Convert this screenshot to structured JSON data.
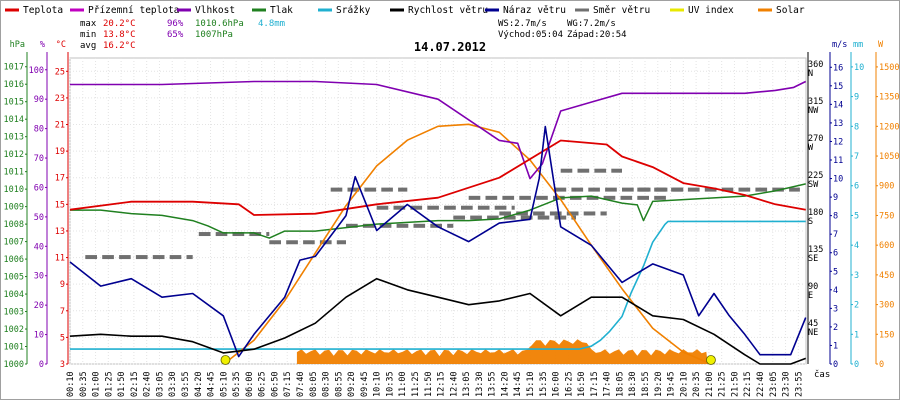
{
  "chart_data": {
    "type": "line",
    "title": "14.07.2012",
    "legend": [
      {
        "name": "Teplota",
        "color": "#dd0000"
      },
      {
        "name": "Přízemní teplota",
        "color": "#c000c0"
      },
      {
        "name": "Vlhkost",
        "color": "#8000b0"
      },
      {
        "name": "Tlak",
        "color": "#208020"
      },
      {
        "name": "Srážky",
        "color": "#20b0d0"
      },
      {
        "name": "Rychlost větru",
        "color": "#000000"
      },
      {
        "name": "Náraz větru",
        "color": "#000090"
      },
      {
        "name": "Směr větru",
        "color": "#707070"
      },
      {
        "name": "UV index",
        "color": "#e8e800"
      },
      {
        "name": "Solar",
        "color": "#f08000"
      }
    ],
    "stats": [
      {
        "label": "max",
        "temp": "20.2°C",
        "hum": "96%",
        "press": "1010.6hPa",
        "rain": "4.8mm"
      },
      {
        "label": "min",
        "temp": "13.8°C",
        "hum": "65%",
        "press": "1007hPa",
        "rain": ""
      },
      {
        "label": "avg",
        "temp": "16.2°C",
        "hum": "",
        "press": "",
        "rain": ""
      }
    ],
    "wind_info": {
      "ws": "WS:2.7m/s",
      "wg": "WG:7.2m/s",
      "sunrise": "Východ:05:04",
      "sunset": "Západ:20:54"
    },
    "axes": {
      "left_units": [
        "hPa",
        "%",
        "°C"
      ],
      "right_units": [
        "m/s",
        "mm",
        "W"
      ],
      "x_title": "čas",
      "pressure_ticks": [
        1000,
        1001,
        1002,
        1003,
        1004,
        1005,
        1006,
        1007,
        1008,
        1009,
        1010,
        1011,
        1012,
        1013,
        1014,
        1015,
        1016,
        1017
      ],
      "humidity_ticks": [
        0,
        10,
        20,
        30,
        40,
        50,
        60,
        70,
        80,
        90,
        100
      ],
      "temp_ticks": [
        3,
        5,
        7,
        9,
        11,
        13,
        15,
        17,
        19,
        21,
        23,
        25
      ],
      "direction_ticks": [
        {
          "deg": "45",
          "dir": "NE"
        },
        {
          "deg": "90",
          "dir": "E"
        },
        {
          "deg": "135",
          "dir": "SE"
        },
        {
          "deg": "180",
          "dir": "S"
        },
        {
          "deg": "225",
          "dir": "SW"
        },
        {
          "deg": "270",
          "dir": "W"
        },
        {
          "deg": "315",
          "dir": "NW"
        },
        {
          "deg": "360",
          "dir": "N"
        }
      ],
      "speed_ticks": [
        0,
        1,
        2,
        3,
        4,
        5,
        6,
        7,
        8,
        9,
        10,
        11,
        12,
        13,
        14,
        15,
        16
      ],
      "rain_ticks": [
        0,
        1,
        2,
        3,
        4,
        5,
        6,
        7,
        8,
        9,
        10
      ],
      "solar_ticks": [
        0,
        150,
        300,
        450,
        600,
        750,
        900,
        1050,
        1200,
        1350,
        1500
      ],
      "time_labels": [
        "00:10",
        "00:35",
        "01:00",
        "01:25",
        "01:50",
        "02:15",
        "02:40",
        "03:05",
        "03:30",
        "03:55",
        "04:20",
        "04:45",
        "05:10",
        "05:35",
        "06:00",
        "06:25",
        "06:50",
        "07:15",
        "07:40",
        "08:05",
        "08:30",
        "08:55",
        "09:20",
        "09:45",
        "10:10",
        "10:35",
        "11:00",
        "11:25",
        "11:50",
        "12:15",
        "12:40",
        "13:05",
        "13:30",
        "13:55",
        "14:20",
        "14:45",
        "15:10",
        "15:35",
        "16:00",
        "16:25",
        "16:50",
        "17:15",
        "17:40",
        "18:05",
        "18:30",
        "18:55",
        "19:20",
        "19:45",
        "20:10",
        "20:35",
        "21:00",
        "21:25",
        "21:50",
        "22:15",
        "22:40",
        "23:05",
        "23:30",
        "23:55"
      ]
    },
    "ranges": {
      "temp": [
        3,
        26
      ],
      "hum": [
        0,
        104
      ],
      "press": [
        1000,
        1017.5
      ],
      "speed": [
        0,
        16.5
      ],
      "rain": [
        0,
        10.3
      ],
      "solar": [
        0,
        1545
      ],
      "dir": [
        0,
        372
      ]
    },
    "series": [
      {
        "name": "Teplota",
        "color": "#dd0000",
        "axis": "temp",
        "x": [
          0,
          2,
          4,
          5.5,
          6,
          8,
          10,
          12,
          14,
          16,
          17,
          17.5,
          18,
          19,
          20,
          21,
          22,
          23,
          23.99
        ],
        "y": [
          14.6,
          15.2,
          15.2,
          15.0,
          14.2,
          14.3,
          15.0,
          15.5,
          17.0,
          19.8,
          19.6,
          19.5,
          18.6,
          17.8,
          16.6,
          16.2,
          15.7,
          15.0,
          14.6
        ]
      },
      {
        "name": "Vlhkost",
        "color": "#8000b0",
        "axis": "hum",
        "x": [
          0,
          3,
          6,
          8,
          10,
          12,
          14,
          14.6,
          15,
          15.4,
          16,
          17,
          18,
          20,
          22,
          23,
          23.6,
          23.99
        ],
        "y": [
          95,
          95,
          96,
          96,
          95,
          90,
          76,
          75,
          63,
          68,
          86,
          89,
          92,
          92,
          92,
          93,
          94,
          96
        ]
      },
      {
        "name": "Tlak",
        "color": "#208020",
        "axis": "press",
        "x": [
          0,
          1,
          2,
          3,
          4,
          4.5,
          5,
          6,
          6.5,
          7,
          8,
          9,
          10,
          11,
          12,
          13,
          14,
          15,
          16,
          17,
          18,
          18.5,
          18.7,
          19,
          20,
          21,
          22,
          23,
          23.99
        ],
        "y": [
          1008.8,
          1008.8,
          1008.6,
          1008.5,
          1008.2,
          1007.9,
          1007.5,
          1007.5,
          1007.2,
          1007.6,
          1007.6,
          1007.8,
          1008,
          1008.1,
          1008.2,
          1008.2,
          1008.3,
          1008.8,
          1009.5,
          1009.6,
          1009.2,
          1009.1,
          1008.2,
          1009.3,
          1009.4,
          1009.5,
          1009.6,
          1009.9,
          1010.3
        ]
      },
      {
        "name": "Srážky",
        "color": "#20b0d0",
        "axis": "rain",
        "x": [
          0,
          16.6,
          17,
          17.3,
          17.6,
          18,
          18.3,
          18.7,
          19,
          19.4,
          19.5,
          23.99
        ],
        "y": [
          0.5,
          0.5,
          0.6,
          0.8,
          1.1,
          1.6,
          2.4,
          3.3,
          4.1,
          4.7,
          4.8,
          4.8
        ]
      },
      {
        "name": "Rychlost větru",
        "color": "#000000",
        "axis": "speed",
        "x": [
          0,
          1,
          2,
          3,
          4,
          5,
          6,
          7,
          8,
          9,
          10,
          11,
          12,
          13,
          14,
          15,
          16,
          17,
          18,
          19,
          20,
          21,
          22,
          22.5,
          23,
          23.5,
          23.99
        ],
        "y": [
          1.5,
          1.6,
          1.5,
          1.5,
          1.2,
          0.6,
          0.8,
          1.4,
          2.2,
          3.6,
          4.6,
          4.0,
          3.6,
          3.2,
          3.4,
          3.8,
          2.6,
          3.6,
          3.6,
          2.6,
          2.4,
          1.6,
          0.5,
          0,
          0,
          0,
          0.3
        ]
      },
      {
        "name": "Náraz větru",
        "color": "#000090",
        "axis": "speed",
        "x": [
          0,
          1,
          2,
          3,
          4,
          5,
          5.5,
          6,
          7,
          7.5,
          8,
          9,
          9.3,
          10,
          11,
          12,
          13,
          14,
          15,
          15.3,
          15.5,
          16,
          17,
          18,
          19,
          20,
          20.5,
          21,
          21.5,
          22,
          22.5,
          23,
          23.5,
          23.99
        ],
        "y": [
          5.5,
          4.2,
          4.6,
          3.6,
          3.8,
          2.6,
          0.4,
          1.6,
          3.6,
          5.6,
          5.8,
          8.0,
          10.1,
          7.2,
          8.6,
          7.4,
          6.6,
          7.6,
          7.8,
          10.0,
          12.8,
          7.4,
          6.4,
          4.4,
          5.4,
          4.8,
          2.6,
          3.8,
          2.6,
          1.6,
          0.5,
          0.5,
          0.5,
          2.5
        ]
      },
      {
        "name": "Solar",
        "color": "#f08000",
        "axis": "solar",
        "x": [
          5.1,
          6,
          7,
          8,
          9,
          10,
          11,
          12,
          13,
          14,
          15,
          16,
          17,
          18,
          19,
          20,
          20.9
        ],
        "y": [
          10,
          120,
          320,
          560,
          800,
          1000,
          1130,
          1200,
          1210,
          1170,
          1030,
          830,
          600,
          380,
          180,
          60,
          0
        ]
      }
    ]
  }
}
